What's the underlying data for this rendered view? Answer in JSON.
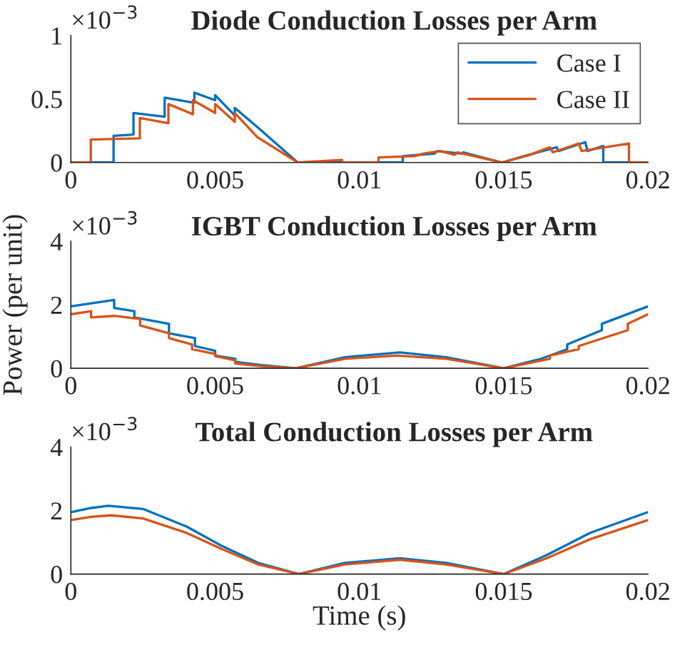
{
  "chart_data": [
    {
      "type": "line",
      "title": "Diode Conduction Losses per Arm",
      "annotations": [
        "×10$^{−3}$"
      ],
      "xlim": [
        0,
        0.02
      ],
      "xticks": [
        0,
        0.005,
        0.01,
        0.015,
        0.02
      ],
      "ylim": [
        0,
        1
      ],
      "yticks": [
        0,
        0.5,
        1
      ],
      "legend": "top right",
      "grid": false,
      "series": [
        {
          "name": "Case I",
          "color": "#0072bd",
          "x": [
            0,
            0.00148,
            0.00148,
            0.00217,
            0.00217,
            0.00325,
            0.00325,
            0.00428,
            0.00428,
            0.005,
            0.005,
            0.00568,
            0.00568,
            0.00646,
            0.00786,
            0.0115,
            0.0115,
            0.0126,
            0.0127,
            0.01354,
            0.0136,
            0.01494,
            0.0157,
            0.01684,
            0.0169,
            0.01783,
            0.0179,
            0.01845,
            0.01845,
            0.02
          ],
          "values": [
            0,
            0,
            0.21,
            0.22,
            0.39,
            0.36,
            0.51,
            0.47,
            0.55,
            0.49,
            0.53,
            0.37,
            0.43,
            0.28,
            0,
            0,
            0.05,
            0.07,
            0.09,
            0.07,
            0.08,
            0,
            0.05,
            0.12,
            0.09,
            0.16,
            0.09,
            0.13,
            0,
            0
          ]
        },
        {
          "name": "Case II",
          "color": "#d95319",
          "x": [
            0,
            0.00069,
            0.00069,
            0.00239,
            0.00239,
            0.00338,
            0.00338,
            0.00423,
            0.00423,
            0.005,
            0.005,
            0.00568,
            0.00568,
            0.00646,
            0.00786,
            0.0094,
            0.0094,
            0.01066,
            0.01066,
            0.0119,
            0.0122,
            0.0128,
            0.0133,
            0.0134,
            0.01494,
            0.0159,
            0.0166,
            0.0167,
            0.0176,
            0.0177,
            0.01934,
            0.01934,
            0.02
          ],
          "values": [
            0,
            0,
            0.18,
            0.19,
            0.35,
            0.31,
            0.46,
            0.38,
            0.49,
            0.39,
            0.46,
            0.32,
            0.39,
            0.2,
            0,
            0.02,
            0,
            0,
            0.04,
            0.05,
            0.07,
            0.09,
            0.06,
            0.08,
            0,
            0.06,
            0.12,
            0.08,
            0.15,
            0.09,
            0.15,
            0,
            0
          ]
        }
      ]
    },
    {
      "type": "line",
      "title": "IGBT Conduction Losses per Arm",
      "ylabel": "Power (per unit)",
      "annotations": [
        "×10$^{−3}$"
      ],
      "xlim": [
        0,
        0.02
      ],
      "xticks": [
        0,
        0.005,
        0.01,
        0.015,
        0.02
      ],
      "ylim": [
        0,
        4
      ],
      "yticks": [
        0,
        2,
        4
      ],
      "grid": false,
      "series": [
        {
          "color": "#0072bd",
          "x": [
            0,
            0.0015,
            0.0015,
            0.0022,
            0.0022,
            0.0034,
            0.0034,
            0.0043,
            0.0043,
            0.005,
            0.005,
            0.0057,
            0.0057,
            0.0066,
            0.0078,
            0.0095,
            0.0114,
            0.013,
            0.015,
            0.0163,
            0.0172,
            0.0172,
            0.0184,
            0.0184,
            0.02
          ],
          "values": [
            1.95,
            2.15,
            1.9,
            1.8,
            1.6,
            1.4,
            1.1,
            0.95,
            0.7,
            0.55,
            0.4,
            0.3,
            0.2,
            0.1,
            0,
            0.35,
            0.5,
            0.35,
            0,
            0.3,
            0.6,
            0.75,
            1.2,
            1.4,
            1.95
          ]
        },
        {
          "color": "#d95319",
          "x": [
            0,
            0.0007,
            0.0007,
            0.0015,
            0.0024,
            0.0024,
            0.0034,
            0.0034,
            0.0042,
            0.0042,
            0.005,
            0.005,
            0.0057,
            0.0057,
            0.0066,
            0.0078,
            0.0095,
            0.0113,
            0.013,
            0.015,
            0.0166,
            0.0166,
            0.0176,
            0.0176,
            0.0193,
            0.0193,
            0.02
          ],
          "values": [
            1.7,
            1.8,
            1.6,
            1.65,
            1.55,
            1.35,
            1.1,
            0.95,
            0.75,
            0.6,
            0.45,
            0.38,
            0.25,
            0.15,
            0.07,
            0,
            0.3,
            0.4,
            0.3,
            0,
            0.3,
            0.4,
            0.6,
            0.7,
            1.2,
            1.4,
            1.7
          ]
        }
      ]
    },
    {
      "type": "line",
      "title": "Total Conduction Losses per Arm",
      "xlabel": "Time (s)",
      "annotations": [
        "×10$^{−3}$"
      ],
      "xlim": [
        0,
        0.02
      ],
      "xticks": [
        0,
        0.005,
        0.01,
        0.015,
        0.02
      ],
      "ylim": [
        0,
        4
      ],
      "yticks": [
        0,
        2,
        4
      ],
      "grid": false,
      "series": [
        {
          "color": "#0072bd",
          "x": [
            0,
            0.0007,
            0.0013,
            0.0025,
            0.004,
            0.0052,
            0.0065,
            0.0079,
            0.0095,
            0.0114,
            0.013,
            0.015,
            0.0165,
            0.018,
            0.02
          ],
          "values": [
            1.95,
            2.08,
            2.15,
            2.05,
            1.5,
            0.9,
            0.35,
            0,
            0.35,
            0.5,
            0.35,
            0,
            0.6,
            1.3,
            1.95
          ]
        },
        {
          "color": "#d95319",
          "x": [
            0,
            0.0007,
            0.0014,
            0.0025,
            0.004,
            0.0052,
            0.0065,
            0.0079,
            0.0095,
            0.0114,
            0.013,
            0.015,
            0.0165,
            0.018,
            0.02
          ],
          "values": [
            1.7,
            1.8,
            1.85,
            1.75,
            1.3,
            0.8,
            0.3,
            0,
            0.3,
            0.45,
            0.3,
            0,
            0.5,
            1.1,
            1.7
          ]
        }
      ]
    }
  ]
}
